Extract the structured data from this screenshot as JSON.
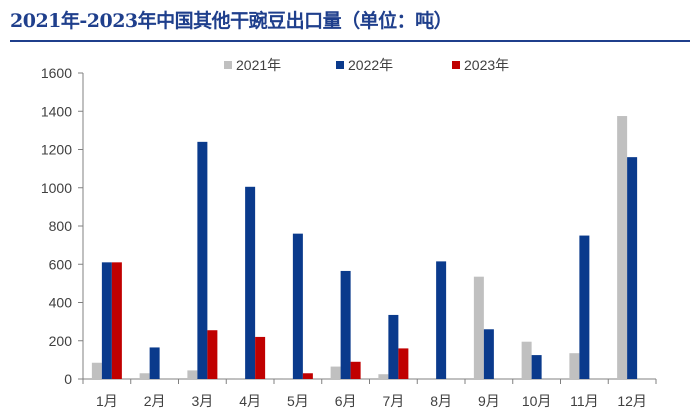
{
  "chart_data": {
    "type": "bar",
    "title": "2021年-2023年中国其他干豌豆出口量（单位：吨）",
    "xlabel": "",
    "ylabel": "",
    "categories": [
      "1月",
      "2月",
      "3月",
      "4月",
      "5月",
      "6月",
      "7月",
      "8月",
      "9月",
      "10月",
      "11月",
      "12月"
    ],
    "ylim": [
      0,
      1600
    ],
    "yticks": [
      0,
      200,
      400,
      600,
      800,
      1000,
      1200,
      1400,
      1600
    ],
    "grid": false,
    "legend_position": "top",
    "series": [
      {
        "name": "2021年",
        "color": "#c0c0c0",
        "values": [
          85,
          30,
          45,
          5,
          5,
          65,
          25,
          0,
          535,
          195,
          135,
          1375
        ]
      },
      {
        "name": "2022年",
        "color": "#0a3a8c",
        "values": [
          610,
          165,
          1240,
          1005,
          760,
          565,
          335,
          615,
          260,
          125,
          750,
          1160
        ]
      },
      {
        "name": "2023年",
        "color": "#c00000",
        "values": [
          610,
          0,
          255,
          220,
          30,
          90,
          160,
          null,
          null,
          null,
          null,
          null
        ]
      }
    ]
  }
}
